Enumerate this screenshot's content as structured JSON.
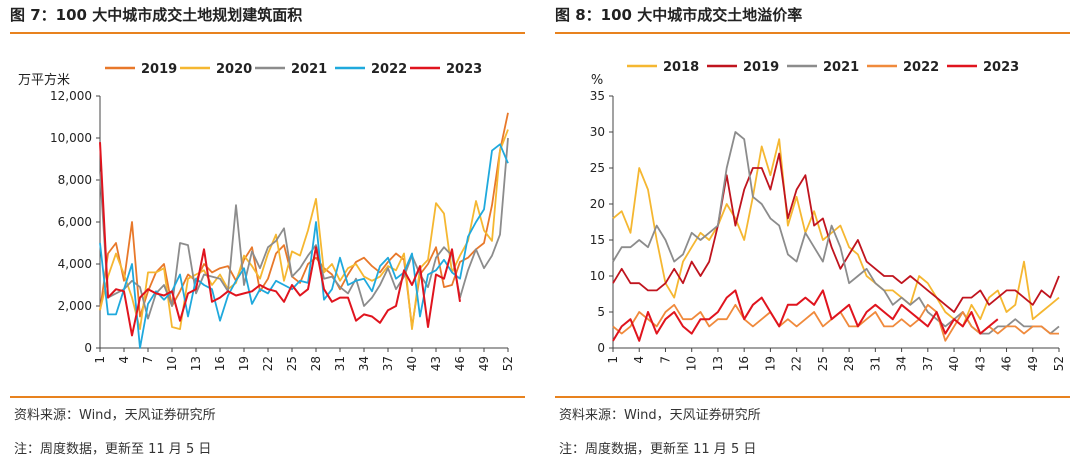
{
  "panels": {
    "left": {
      "title": "图 7：100 大中城市成交土地规划建筑面积",
      "source": "资料来源：Wind，天风证券研究所",
      "note": "注：周度数据，更新至 11 月 5 日"
    },
    "right": {
      "title": "图 8：100 大中城市成交土地溢价率",
      "source": "资料来源：Wind，天风证券研究所",
      "note": "注：周度数据，更新至 11 月 5 日"
    }
  },
  "chart_data": [
    {
      "type": "line",
      "title": "图 7：100 大中城市成交土地规划建筑面积",
      "ylabel": "万平方米",
      "ylim": [
        0,
        12000
      ],
      "yticks": [
        0,
        2000,
        4000,
        6000,
        8000,
        10000,
        12000
      ],
      "ytick_labels": [
        "0",
        "2,000",
        "4,000",
        "6,000",
        "8,000",
        "10,000",
        "12,000"
      ],
      "xlim": [
        1,
        52
      ],
      "xticks": [
        1,
        4,
        7,
        10,
        13,
        16,
        19,
        22,
        25,
        28,
        31,
        34,
        37,
        40,
        43,
        46,
        49,
        52
      ],
      "legend_position": "top",
      "series": [
        {
          "name": "2019",
          "color": "#e8782a",
          "values": [
            1800,
            4500,
            5000,
            3200,
            6000,
            1500,
            2700,
            3600,
            4000,
            2000,
            2700,
            3500,
            3200,
            4000,
            3600,
            3800,
            3900,
            3200,
            4200,
            4800,
            2700,
            3300,
            4500,
            4900,
            3400,
            3100,
            4000,
            4300,
            3800,
            3500,
            2800,
            3500,
            4100,
            4300,
            3900,
            3600,
            4100,
            4500,
            4200,
            1000,
            3500,
            4000,
            4800,
            2900,
            3000,
            4100,
            4300,
            4700,
            5000,
            6800,
            9400,
            11200
          ]
        },
        {
          "name": "2020",
          "color": "#f5b731",
          "values": [
            1800,
            3400,
            4500,
            3500,
            2400,
            900,
            3600,
            3600,
            3800,
            1000,
            900,
            3300,
            3500,
            3700,
            3000,
            3500,
            2800,
            3100,
            4400,
            3900,
            3300,
            4500,
            5400,
            3200,
            4600,
            4400,
            5600,
            7100,
            3600,
            4000,
            3200,
            3800,
            4000,
            3400,
            3200,
            3400,
            3900,
            3700,
            4500,
            900,
            3800,
            4200,
            6900,
            6400,
            3600,
            4400,
            5100,
            7000,
            5600,
            5100,
            9400,
            10400
          ]
        },
        {
          "name": "2021",
          "color": "#8c8c8c",
          "values": [
            8400,
            2400,
            2600,
            2800,
            3200,
            2900,
            1400,
            2600,
            3000,
            2000,
            5000,
            4900,
            2600,
            3500,
            3400,
            3300,
            2700,
            6800,
            3000,
            4600,
            3800,
            4800,
            5100,
            5700,
            3400,
            3800,
            4400,
            4900,
            3300,
            3400,
            2900,
            2600,
            3300,
            2000,
            2400,
            3000,
            3800,
            2800,
            3400,
            4400,
            3500,
            2900,
            4300,
            4800,
            4400,
            2400,
            3700,
            4700,
            3800,
            4400,
            5400,
            10000
          ]
        },
        {
          "name": "2022",
          "color": "#1fa9dd",
          "values": [
            5000,
            1600,
            1600,
            2800,
            4000,
            0,
            2100,
            2700,
            2300,
            2700,
            3500,
            1500,
            3300,
            3000,
            2800,
            1300,
            2500,
            3200,
            3800,
            2100,
            2800,
            2600,
            3200,
            3000,
            2800,
            3200,
            3100,
            6000,
            2300,
            2800,
            4300,
            3000,
            3200,
            3300,
            2700,
            3900,
            4300,
            3300,
            3600,
            4500,
            1500,
            3500,
            3700,
            4200,
            3600,
            3300,
            5300,
            6000,
            6600,
            9400,
            9700,
            8800
          ]
        },
        {
          "name": "2023",
          "color": "#e0141e",
          "values": [
            9800,
            2400,
            2800,
            2700,
            600,
            2400,
            2800,
            2600,
            2500,
            2700,
            1300,
            2600,
            2800,
            4700,
            2200,
            2400,
            2700,
            2500,
            2600,
            2700,
            3000,
            2800,
            2700,
            2200,
            3000,
            2500,
            2800,
            4800,
            2800,
            2200,
            2400,
            2400,
            1300,
            1600,
            1500,
            1200,
            1800,
            2000,
            3700,
            3000,
            3900,
            1000,
            3500,
            3300,
            4700,
            2200
          ]
        }
      ]
    },
    {
      "type": "line",
      "title": "图 8：100 大中城市成交土地溢价率",
      "ylabel": "%",
      "ylim": [
        0,
        35
      ],
      "yticks": [
        0,
        5,
        10,
        15,
        20,
        25,
        30,
        35
      ],
      "ytick_labels": [
        "0",
        "5",
        "10",
        "15",
        "20",
        "25",
        "30",
        "35"
      ],
      "xlim": [
        1,
        52
      ],
      "xticks": [
        1,
        4,
        7,
        10,
        13,
        16,
        19,
        22,
        25,
        28,
        31,
        34,
        37,
        40,
        43,
        46,
        49,
        52
      ],
      "legend_position": "top",
      "series": [
        {
          "name": "2018",
          "color": "#f5b731",
          "values": [
            18,
            19,
            16,
            25,
            22,
            15,
            9,
            7,
            12,
            14,
            16,
            15,
            17,
            20,
            18,
            15,
            21,
            28,
            24,
            29,
            17,
            21,
            16,
            19,
            15,
            16,
            17,
            14,
            13,
            10,
            9,
            8,
            8,
            7,
            6,
            10,
            9,
            7,
            5,
            4,
            3,
            6,
            4,
            7,
            8,
            5,
            6,
            12,
            4,
            5,
            6,
            7
          ]
        },
        {
          "name": "2019",
          "color": "#c0141e",
          "values": [
            9,
            11,
            9,
            9,
            8,
            8,
            9,
            11,
            9,
            12,
            10,
            12,
            17,
            24,
            17,
            22,
            25,
            25,
            22,
            27,
            18,
            22,
            24,
            17,
            18,
            14,
            11,
            13,
            15,
            12,
            11,
            10,
            10,
            9,
            10,
            9,
            8,
            7,
            6,
            5,
            7,
            7,
            8,
            6,
            7,
            8,
            8,
            7,
            6,
            8,
            7,
            10
          ]
        },
        {
          "name": "2021",
          "color": "#8c8c8c",
          "values": [
            12,
            14,
            14,
            15,
            14,
            17,
            15,
            12,
            13,
            16,
            15,
            16,
            17,
            25,
            30,
            29,
            21,
            20,
            18,
            17,
            13,
            12,
            16,
            14,
            12,
            17,
            14,
            9,
            10,
            11,
            9,
            8,
            6,
            7,
            6,
            7,
            5,
            4,
            3,
            4,
            5,
            3,
            2,
            2,
            3,
            3,
            4,
            3,
            3,
            3,
            2,
            3
          ]
        },
        {
          "name": "2022",
          "color": "#f08a3c",
          "values": [
            3,
            2,
            3,
            5,
            4,
            3,
            5,
            6,
            4,
            4,
            5,
            3,
            4,
            4,
            6,
            4,
            3,
            4,
            5,
            3,
            4,
            3,
            4,
            5,
            3,
            4,
            5,
            3,
            3,
            4,
            5,
            3,
            3,
            4,
            3,
            4,
            6,
            5,
            1,
            3,
            5,
            3,
            2,
            3,
            2,
            3,
            3,
            2,
            3,
            3,
            2,
            2
          ]
        },
        {
          "name": "2023",
          "color": "#e0141e",
          "values": [
            1,
            3,
            4,
            1,
            5,
            2,
            4,
            5,
            3,
            2,
            4,
            4,
            5,
            7,
            8,
            4,
            6,
            7,
            5,
            3,
            6,
            6,
            7,
            6,
            8,
            4,
            5,
            6,
            3,
            5,
            6,
            5,
            4,
            6,
            5,
            4,
            3,
            5,
            2,
            4,
            3,
            5,
            2,
            3,
            4
          ]
        }
      ]
    }
  ]
}
